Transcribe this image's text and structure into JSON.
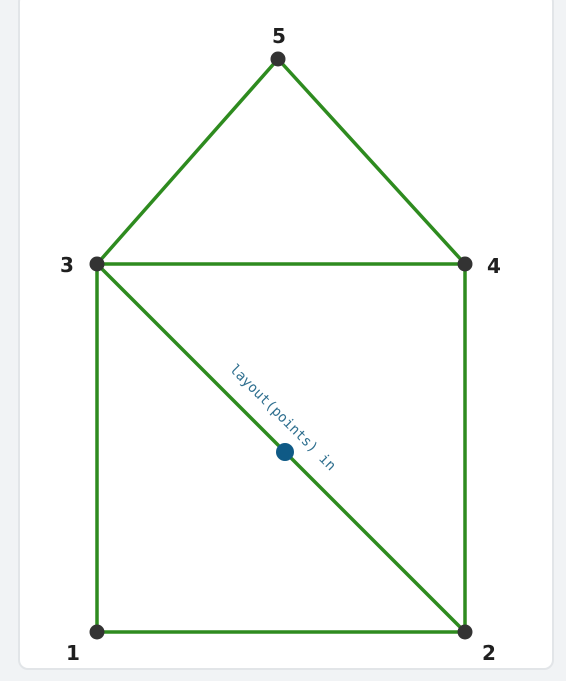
{
  "colors": {
    "edge": "#2e8b1f",
    "node": "#333333",
    "midpoint": "#0f5a86",
    "edge_label": "#2f6f8f",
    "frame_bg": "#ffffff",
    "frame_border": "#e2e5e8"
  },
  "nodes": [
    {
      "id": "1",
      "label": "1"
    },
    {
      "id": "2",
      "label": "2"
    },
    {
      "id": "3",
      "label": "3"
    },
    {
      "id": "4",
      "label": "4"
    },
    {
      "id": "5",
      "label": "5"
    }
  ],
  "edges": [
    {
      "from": "1",
      "to": "2"
    },
    {
      "from": "1",
      "to": "3"
    },
    {
      "from": "2",
      "to": "4"
    },
    {
      "from": "3",
      "to": "4"
    },
    {
      "from": "3",
      "to": "5"
    },
    {
      "from": "4",
      "to": "5"
    },
    {
      "from": "3",
      "to": "2",
      "label": "layout(points) in"
    }
  ]
}
